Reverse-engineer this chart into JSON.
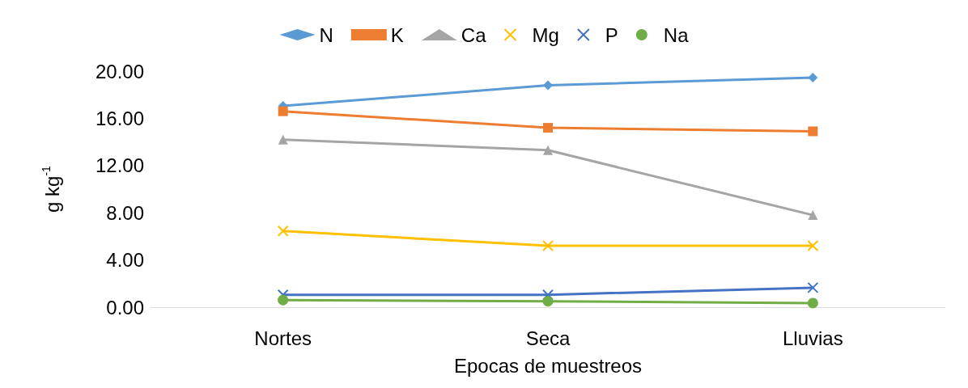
{
  "chart_data": {
    "type": "line",
    "xlabel": "Epocas de muestreos",
    "ylabel": "g kg$^{-1}$",
    "categories": [
      "Nortes",
      "Seca",
      "Lluvias"
    ],
    "series": [
      {
        "name": "N",
        "color": "#5b9bd5",
        "marker": "diamond",
        "values": [
          17.05,
          18.8,
          19.45
        ]
      },
      {
        "name": "K",
        "color": "#ed7d31",
        "marker": "square",
        "values": [
          16.6,
          15.2,
          14.9
        ]
      },
      {
        "name": "Ca",
        "color": "#a5a5a5",
        "marker": "triangle",
        "values": [
          14.2,
          13.3,
          7.8
        ]
      },
      {
        "name": "Mg",
        "color": "#ffc000",
        "marker": "cross",
        "values": [
          6.45,
          5.2,
          5.2
        ]
      },
      {
        "name": "P",
        "color": "#4472c4",
        "marker": "cross",
        "values": [
          1.05,
          1.05,
          1.65
        ]
      },
      {
        "name": "Na",
        "color": "#70ad47",
        "marker": "circle",
        "values": [
          0.6,
          0.5,
          0.35
        ]
      }
    ],
    "ylim": [
      0,
      20
    ],
    "yticks": [
      {
        "value": 0,
        "label": "0.00"
      },
      {
        "value": 4,
        "label": "4.00"
      },
      {
        "value": 8,
        "label": "8.00"
      },
      {
        "value": 12,
        "label": "12.00"
      },
      {
        "value": 16,
        "label": "16.00"
      },
      {
        "value": 20,
        "label": "20.00"
      }
    ],
    "grid": false,
    "legend": "top"
  }
}
